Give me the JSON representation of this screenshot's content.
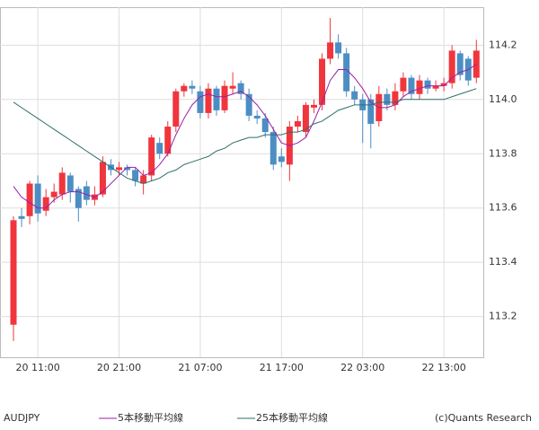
{
  "chart_data": {
    "type": "candlestick",
    "symbol": "AUDJPY",
    "credit": "(c)Quants Research",
    "categories": [
      null,
      null,
      null,
      "20 11:00",
      null,
      null,
      null,
      null,
      null,
      null,
      null,
      null,
      null,
      "20 21:00",
      null,
      null,
      null,
      null,
      null,
      null,
      null,
      null,
      null,
      "21 07:00",
      null,
      null,
      null,
      null,
      null,
      null,
      null,
      null,
      null,
      "21 17:00",
      null,
      null,
      null,
      null,
      null,
      null,
      null,
      null,
      null,
      "22 03:00",
      null,
      null,
      null,
      null,
      null,
      null,
      null,
      null,
      null,
      "22 13:00",
      null,
      null,
      null,
      null
    ],
    "open": [
      113.17,
      113.57,
      113.57,
      113.69,
      113.59,
      113.64,
      113.65,
      113.72,
      113.67,
      113.68,
      113.63,
      113.65,
      113.76,
      113.74,
      113.75,
      113.74,
      113.69,
      113.72,
      113.84,
      113.8,
      113.9,
      114.03,
      114.05,
      114.03,
      113.95,
      114.04,
      113.96,
      114.04,
      114.06,
      114.02,
      113.94,
      113.93,
      113.88,
      113.79,
      113.76,
      113.9,
      113.88,
      113.97,
      113.98,
      114.15,
      114.21,
      114.17,
      114.03,
      114.0,
      114.0,
      113.92,
      114.02,
      113.98,
      114.03,
      114.08,
      114.02,
      114.07,
      114.04,
      114.05,
      114.06,
      114.17,
      114.15,
      114.08
    ],
    "high": [
      113.57,
      113.6,
      113.7,
      113.72,
      113.67,
      113.69,
      113.75,
      113.73,
      113.68,
      113.7,
      113.68,
      113.79,
      113.78,
      113.77,
      113.76,
      113.75,
      113.74,
      113.87,
      113.86,
      113.92,
      114.04,
      114.06,
      114.07,
      114.05,
      114.06,
      114.05,
      114.07,
      114.1,
      114.07,
      114.04,
      113.96,
      113.95,
      113.9,
      113.82,
      113.92,
      113.94,
      113.99,
      114.0,
      114.17,
      114.3,
      114.24,
      114.19,
      114.05,
      114.02,
      114.02,
      114.05,
      114.04,
      114.06,
      114.1,
      114.09,
      114.09,
      114.08,
      114.07,
      114.08,
      114.2,
      114.18,
      114.16,
      114.22
    ],
    "low": [
      113.11,
      113.53,
      113.54,
      113.55,
      113.57,
      113.62,
      113.63,
      113.62,
      113.55,
      113.61,
      113.61,
      113.64,
      113.72,
      113.72,
      113.72,
      113.68,
      113.65,
      113.7,
      113.78,
      113.79,
      113.88,
      114.01,
      114.02,
      113.93,
      113.93,
      113.94,
      113.95,
      114.02,
      114.0,
      113.92,
      113.91,
      113.86,
      113.74,
      113.75,
      113.7,
      113.88,
      113.86,
      113.95,
      113.96,
      114.13,
      114.15,
      114.01,
      113.98,
      113.84,
      113.82,
      113.9,
      113.96,
      113.96,
      114.01,
      114.0,
      114.0,
      114.02,
      114.03,
      114.03,
      114.04,
      114.07,
      114.05,
      114.06
    ],
    "close": [
      113.555,
      113.56,
      113.69,
      113.58,
      113.64,
      113.66,
      113.73,
      113.66,
      113.6,
      113.63,
      113.65,
      113.77,
      113.74,
      113.75,
      113.74,
      113.7,
      113.72,
      113.86,
      113.8,
      113.9,
      114.03,
      114.05,
      114.04,
      113.95,
      114.04,
      113.96,
      114.05,
      114.05,
      114.02,
      113.94,
      113.93,
      113.88,
      113.76,
      113.77,
      113.9,
      113.92,
      113.98,
      113.98,
      114.15,
      114.21,
      114.17,
      114.03,
      114.0,
      113.96,
      113.91,
      114.02,
      113.98,
      114.03,
      114.08,
      114.02,
      114.07,
      114.04,
      114.05,
      114.06,
      114.18,
      114.09,
      114.07,
      114.18
    ],
    "up_color": "#f0353d",
    "down_color": "#4c8ec4",
    "series": [
      {
        "name": "5本移動平均線",
        "color": "#9b1fa8",
        "values": [
          113.68,
          113.64,
          113.62,
          113.6,
          113.6,
          113.63,
          113.65,
          113.66,
          113.66,
          113.65,
          113.64,
          113.66,
          113.69,
          113.72,
          113.75,
          113.75,
          113.72,
          113.73,
          113.76,
          113.8,
          113.87,
          113.93,
          113.98,
          114.01,
          114.02,
          114.01,
          114.01,
          114.02,
          114.03,
          114.01,
          113.98,
          113.94,
          113.89,
          113.84,
          113.83,
          113.84,
          113.86,
          113.92,
          113.99,
          114.07,
          114.11,
          114.11,
          114.08,
          114.04,
          113.99,
          113.97,
          113.97,
          113.98,
          114.01,
          114.03,
          114.04,
          114.05,
          114.05,
          114.05,
          114.08,
          114.1,
          114.11,
          114.13
        ]
      },
      {
        "name": "25本移動平均線",
        "color": "#2e6f6a",
        "values": [
          113.99,
          113.97,
          113.95,
          113.93,
          113.91,
          113.89,
          113.87,
          113.85,
          113.83,
          113.81,
          113.79,
          113.77,
          113.75,
          113.73,
          113.71,
          113.7,
          113.69,
          113.7,
          113.71,
          113.73,
          113.74,
          113.76,
          113.77,
          113.78,
          113.79,
          113.81,
          113.82,
          113.84,
          113.85,
          113.86,
          113.86,
          113.87,
          113.87,
          113.87,
          113.88,
          113.88,
          113.89,
          113.91,
          113.92,
          113.94,
          113.96,
          113.97,
          113.98,
          113.98,
          113.98,
          113.99,
          113.99,
          113.99,
          114.0,
          114.0,
          114.0,
          114.0,
          114.0,
          114.0,
          114.01,
          114.02,
          114.03,
          114.04
        ]
      }
    ],
    "ylim": [
      113.05,
      114.34
    ],
    "yticks": [
      113.2,
      113.4,
      113.6,
      113.8,
      {
        "value": 114.0,
        "label": "114.0"
      },
      114.2
    ],
    "grid": true
  }
}
